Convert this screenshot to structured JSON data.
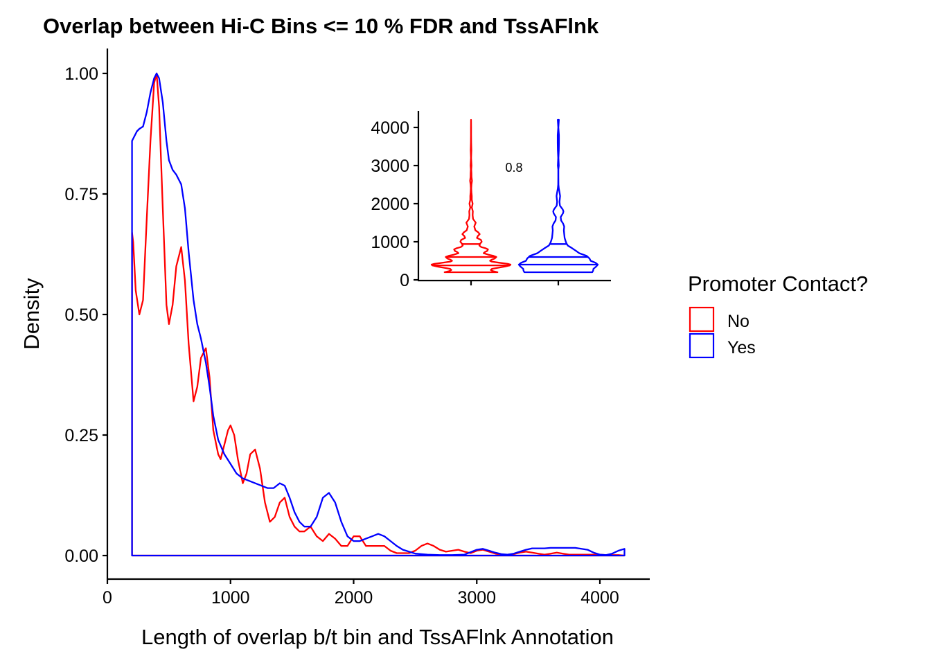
{
  "chart_data": [
    {
      "type": "area",
      "title": "Overlap between Hi-C Bins <= 10 % FDR and TssAFlnk",
      "xlabel": "Length of overlap b/t bin and TssAFlnk Annotation",
      "ylabel": "Density",
      "xlim": [
        0,
        4400
      ],
      "ylim": [
        -0.05,
        1.05
      ],
      "x_ticks": [
        0,
        1000,
        2000,
        3000,
        4000
      ],
      "x_tick_labels": [
        "0",
        "1000",
        "2000",
        "3000",
        "4000"
      ],
      "y_ticks": [
        0,
        0.25,
        0.5,
        0.75,
        1.0
      ],
      "y_tick_labels": [
        "0.00",
        "0.25",
        "0.50",
        "0.75",
        "1.00"
      ],
      "grid": false,
      "series": [
        {
          "name": "No",
          "color": "#FF0000",
          "x": [
            200,
            210,
            230,
            260,
            290,
            320,
            350,
            380,
            400,
            420,
            450,
            480,
            500,
            530,
            560,
            600,
            630,
            660,
            700,
            730,
            760,
            800,
            830,
            860,
            900,
            920,
            950,
            980,
            1000,
            1030,
            1060,
            1100,
            1130,
            1160,
            1200,
            1240,
            1280,
            1320,
            1360,
            1400,
            1440,
            1480,
            1520,
            1560,
            1600,
            1650,
            1700,
            1750,
            1800,
            1850,
            1900,
            1950,
            2000,
            2050,
            2100,
            2150,
            2200,
            2250,
            2300,
            2350,
            2400,
            2450,
            2500,
            2550,
            2600,
            2650,
            2700,
            2750,
            2800,
            2850,
            2900,
            2950,
            3000,
            3050,
            3100,
            3150,
            3200,
            3250,
            3300,
            3350,
            3400,
            3450,
            3500,
            3550,
            3600,
            3650,
            3700,
            3750,
            3800,
            3850,
            3900,
            3950,
            4000,
            4050,
            4100,
            4150,
            4200
          ],
          "y": [
            0.67,
            0.65,
            0.55,
            0.5,
            0.53,
            0.7,
            0.86,
            0.98,
            1.0,
            0.93,
            0.72,
            0.52,
            0.48,
            0.52,
            0.6,
            0.64,
            0.57,
            0.44,
            0.32,
            0.35,
            0.41,
            0.43,
            0.37,
            0.26,
            0.21,
            0.2,
            0.23,
            0.26,
            0.27,
            0.25,
            0.2,
            0.15,
            0.17,
            0.21,
            0.22,
            0.18,
            0.11,
            0.07,
            0.08,
            0.11,
            0.12,
            0.08,
            0.06,
            0.05,
            0.05,
            0.06,
            0.04,
            0.03,
            0.045,
            0.035,
            0.02,
            0.02,
            0.04,
            0.04,
            0.02,
            0.02,
            0.02,
            0.02,
            0.01,
            0.005,
            0.005,
            0.005,
            0.01,
            0.02,
            0.025,
            0.02,
            0.012,
            0.008,
            0.01,
            0.012,
            0.008,
            0.005,
            0.01,
            0.012,
            0.008,
            0.004,
            0.002,
            0.002,
            0.003,
            0.006,
            0.008,
            0.006,
            0.004,
            0.002,
            0.004,
            0.006,
            0.004,
            0.002,
            0.002,
            0.002,
            0.002,
            0.002,
            0.002,
            0.001,
            0.001,
            0.001,
            0.0
          ]
        },
        {
          "name": "Yes",
          "color": "#0000FF",
          "x": [
            200,
            220,
            240,
            260,
            290,
            320,
            350,
            380,
            400,
            420,
            450,
            480,
            500,
            530,
            560,
            600,
            630,
            660,
            700,
            730,
            760,
            800,
            830,
            860,
            900,
            950,
            1000,
            1050,
            1100,
            1150,
            1200,
            1250,
            1300,
            1350,
            1400,
            1440,
            1480,
            1520,
            1560,
            1600,
            1650,
            1700,
            1750,
            1800,
            1850,
            1900,
            1950,
            2000,
            2050,
            2100,
            2150,
            2200,
            2250,
            2300,
            2350,
            2400,
            2450,
            2500,
            2600,
            2700,
            2800,
            2900,
            3000,
            3050,
            3100,
            3150,
            3200,
            3250,
            3300,
            3350,
            3400,
            3450,
            3500,
            3550,
            3600,
            3650,
            3700,
            3750,
            3800,
            3850,
            3900,
            3950,
            4000,
            4050,
            4100,
            4150,
            4200
          ],
          "y": [
            0.86,
            0.87,
            0.88,
            0.885,
            0.89,
            0.92,
            0.96,
            0.99,
            1.0,
            0.99,
            0.94,
            0.86,
            0.82,
            0.8,
            0.79,
            0.77,
            0.72,
            0.63,
            0.53,
            0.48,
            0.45,
            0.4,
            0.35,
            0.29,
            0.24,
            0.21,
            0.19,
            0.17,
            0.16,
            0.155,
            0.15,
            0.145,
            0.14,
            0.14,
            0.15,
            0.145,
            0.12,
            0.09,
            0.07,
            0.06,
            0.06,
            0.08,
            0.12,
            0.13,
            0.11,
            0.07,
            0.04,
            0.03,
            0.03,
            0.035,
            0.04,
            0.045,
            0.04,
            0.03,
            0.02,
            0.012,
            0.008,
            0.004,
            0.002,
            0.001,
            0.001,
            0.002,
            0.012,
            0.014,
            0.01,
            0.006,
            0.003,
            0.002,
            0.004,
            0.008,
            0.012,
            0.015,
            0.015,
            0.015,
            0.016,
            0.016,
            0.016,
            0.016,
            0.016,
            0.014,
            0.012,
            0.006,
            0.002,
            0.001,
            0.004,
            0.01,
            0.014
          ]
        }
      ],
      "legend": {
        "title": "Promoter Contact?",
        "position": "right",
        "entries": [
          "No",
          "Yes"
        ]
      }
    },
    {
      "type": "violin",
      "inset": true,
      "ylim": [
        0,
        4400
      ],
      "y_ticks": [
        0,
        1000,
        2000,
        3000,
        4000
      ],
      "y_tick_labels": [
        "0",
        "1000",
        "2000",
        "3000",
        "4000"
      ],
      "annotation": "0.8",
      "grid": false,
      "groups": [
        {
          "name": "No",
          "color": "#FF0000",
          "y": [
            200,
            230,
            260,
            290,
            320,
            350,
            380,
            400,
            420,
            450,
            480,
            500,
            530,
            560,
            600,
            630,
            660,
            700,
            730,
            760,
            800,
            830,
            860,
            900,
            950,
            1000,
            1050,
            1100,
            1150,
            1200,
            1250,
            1300,
            1400,
            1500,
            1600,
            1700,
            1800,
            1900,
            2000,
            2100,
            2200,
            2300,
            2400,
            2500,
            2600,
            2700,
            2800,
            2900,
            3000,
            3200,
            3400,
            3600,
            3800,
            4000,
            4200
          ],
          "half_width": [
            0.67,
            0.55,
            0.5,
            0.53,
            0.7,
            0.86,
            0.98,
            1.0,
            0.93,
            0.72,
            0.52,
            0.48,
            0.52,
            0.6,
            0.64,
            0.57,
            0.44,
            0.32,
            0.35,
            0.41,
            0.43,
            0.37,
            0.26,
            0.21,
            0.23,
            0.27,
            0.25,
            0.15,
            0.17,
            0.22,
            0.18,
            0.11,
            0.08,
            0.12,
            0.05,
            0.04,
            0.045,
            0.02,
            0.04,
            0.02,
            0.02,
            0.01,
            0.005,
            0.01,
            0.025,
            0.012,
            0.01,
            0.005,
            0.012,
            0.002,
            0.008,
            0.004,
            0.002,
            0.001,
            0.0
          ],
          "quantile_lines": [
            380,
            600,
            940
          ]
        },
        {
          "name": "Yes",
          "color": "#0000FF",
          "y": [
            200,
            240,
            290,
            350,
            400,
            450,
            500,
            560,
            630,
            700,
            760,
            830,
            900,
            950,
            1000,
            1100,
            1200,
            1300,
            1400,
            1480,
            1560,
            1650,
            1750,
            1800,
            1850,
            1950,
            2050,
            2200,
            2300,
            2400,
            2500,
            2700,
            2900,
            3000,
            3200,
            3400,
            3600,
            3800,
            4000,
            4200
          ],
          "half_width": [
            0.86,
            0.88,
            0.89,
            0.96,
            1.0,
            0.94,
            0.82,
            0.79,
            0.72,
            0.53,
            0.45,
            0.35,
            0.24,
            0.21,
            0.19,
            0.16,
            0.15,
            0.14,
            0.15,
            0.12,
            0.07,
            0.06,
            0.12,
            0.13,
            0.11,
            0.04,
            0.03,
            0.045,
            0.03,
            0.012,
            0.004,
            0.001,
            0.002,
            0.012,
            0.003,
            0.012,
            0.016,
            0.016,
            0.002,
            0.014
          ],
          "quantile_lines": [
            400,
            600,
            940
          ]
        }
      ],
      "categories": [
        "No",
        "Yes"
      ]
    }
  ]
}
